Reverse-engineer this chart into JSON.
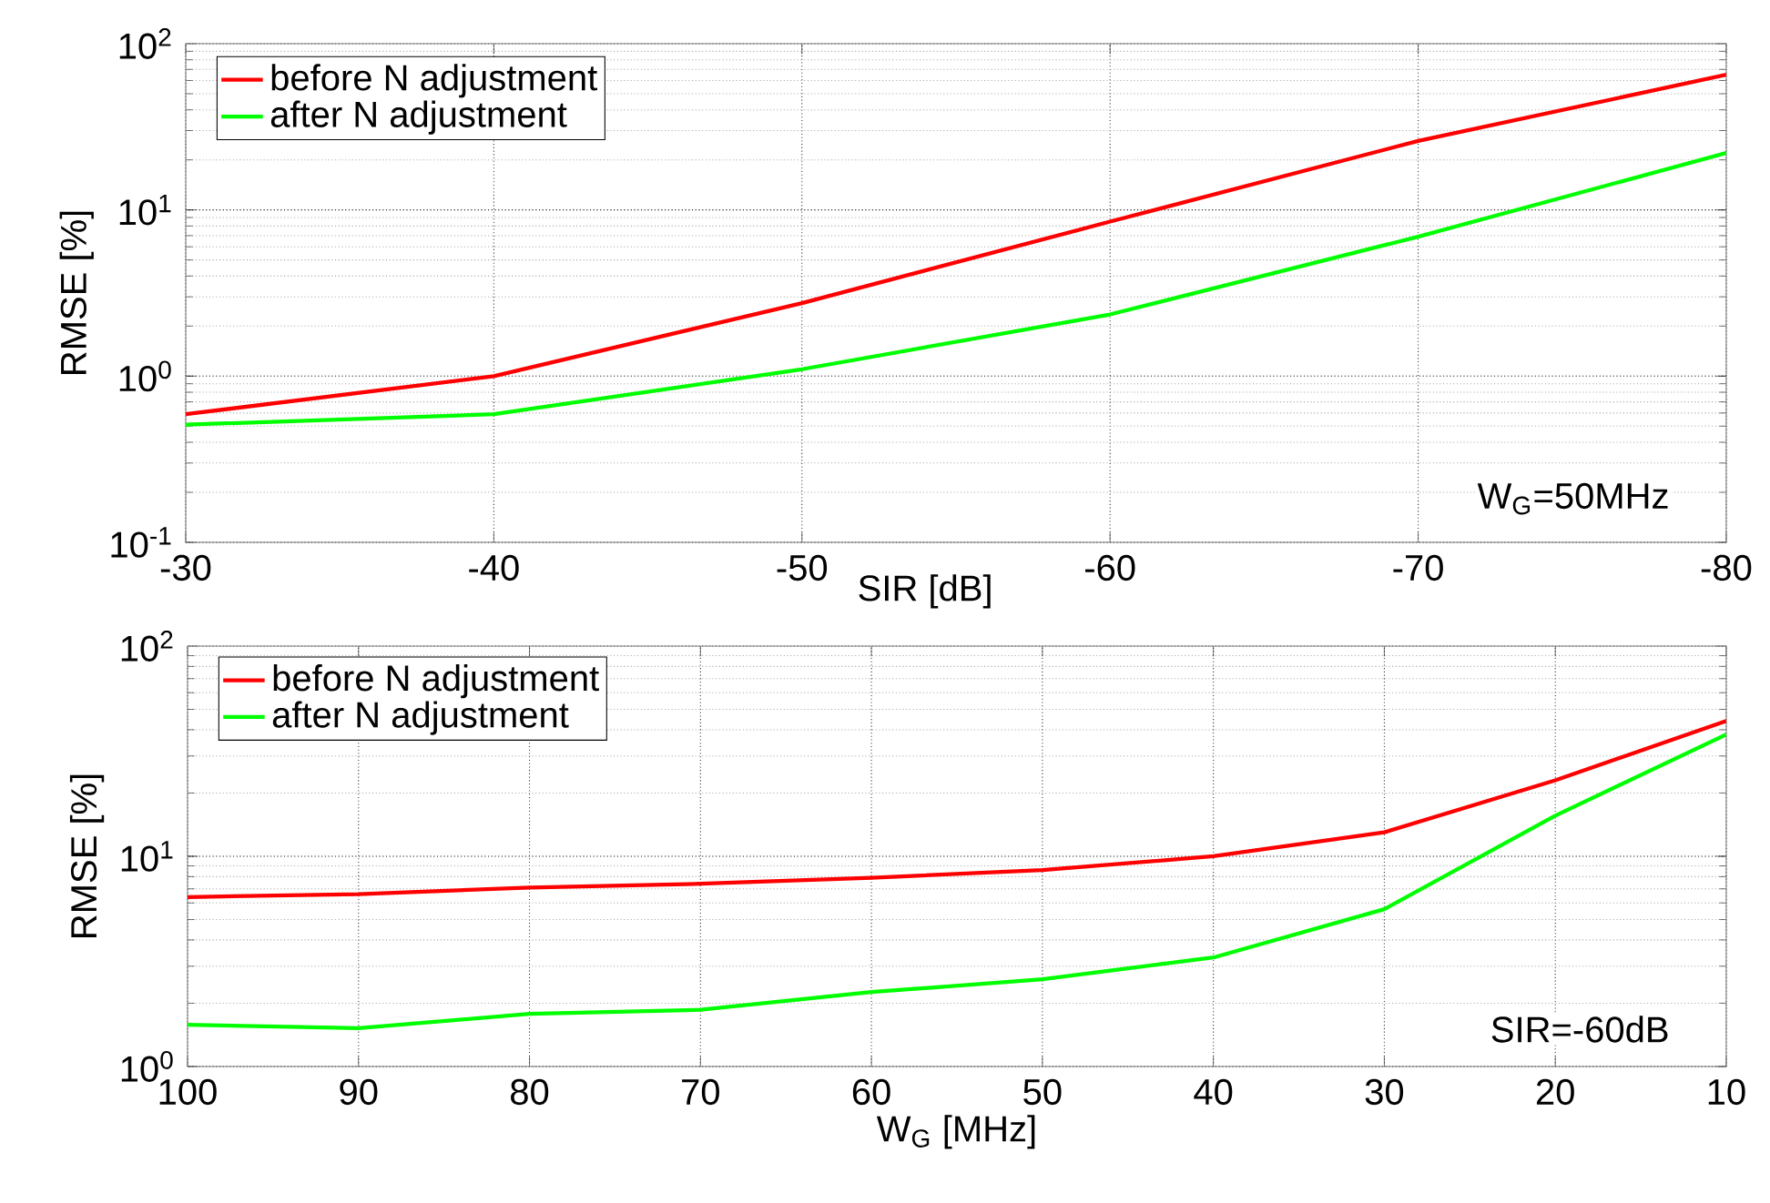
{
  "chart_data": [
    {
      "type": "line",
      "xlabel": "SIR [dB]",
      "ylabel": "RMSE [%]",
      "x": [
        -30,
        -40,
        -50,
        -60,
        -70,
        -80
      ],
      "xlim": [
        -30,
        -80
      ],
      "xticks": [
        -30,
        -40,
        -50,
        -60,
        -70,
        -80
      ],
      "log": "y",
      "ylim": [
        0.1,
        100
      ],
      "yticks": [
        {
          "value": 0.1,
          "label": "10$^{-1}$"
        },
        {
          "value": 1,
          "label": "10$^{0}$"
        },
        {
          "value": 10,
          "label": "10$^{1}$"
        },
        {
          "value": 100,
          "label": "10$^{2}$"
        }
      ],
      "grid": true,
      "legend": "top left",
      "annotations": [
        "W$_{G}$=50MHz"
      ],
      "series": [
        {
          "name": "before N adjustment",
          "color": "#ff0000",
          "values": [
            0.59,
            1.0,
            2.75,
            8.5,
            26,
            65
          ]
        },
        {
          "name": "after N adjustment",
          "color": "#00ff00",
          "values": [
            0.51,
            0.59,
            1.1,
            2.35,
            6.9,
            22
          ]
        }
      ]
    },
    {
      "type": "line",
      "xlabel": "W$_{G}$ [MHz]",
      "ylabel": "RMSE [%]",
      "x": [
        100,
        90,
        80,
        70,
        60,
        50,
        40,
        30,
        20,
        10
      ],
      "xlim": [
        100,
        10
      ],
      "xticks": [
        100,
        90,
        80,
        70,
        60,
        50,
        40,
        30,
        20,
        10
      ],
      "log": "y",
      "ylim": [
        1,
        100
      ],
      "yticks": [
        {
          "value": 1,
          "label": "10$^{0}$"
        },
        {
          "value": 10,
          "label": "10$^{1}$"
        },
        {
          "value": 100,
          "label": "10$^{2}$"
        }
      ],
      "grid": true,
      "legend": "top left",
      "annotations": [
        "SIR=-60dB"
      ],
      "series": [
        {
          "name": "before N adjustment",
          "color": "#ff0000",
          "values": [
            6.4,
            6.6,
            7.1,
            7.4,
            7.9,
            8.6,
            10,
            13,
            23,
            44
          ]
        },
        {
          "name": "after N adjustment",
          "color": "#00ff00",
          "values": [
            1.58,
            1.52,
            1.78,
            1.86,
            2.26,
            2.6,
            3.3,
            5.6,
            15.6,
            38
          ]
        }
      ]
    }
  ]
}
